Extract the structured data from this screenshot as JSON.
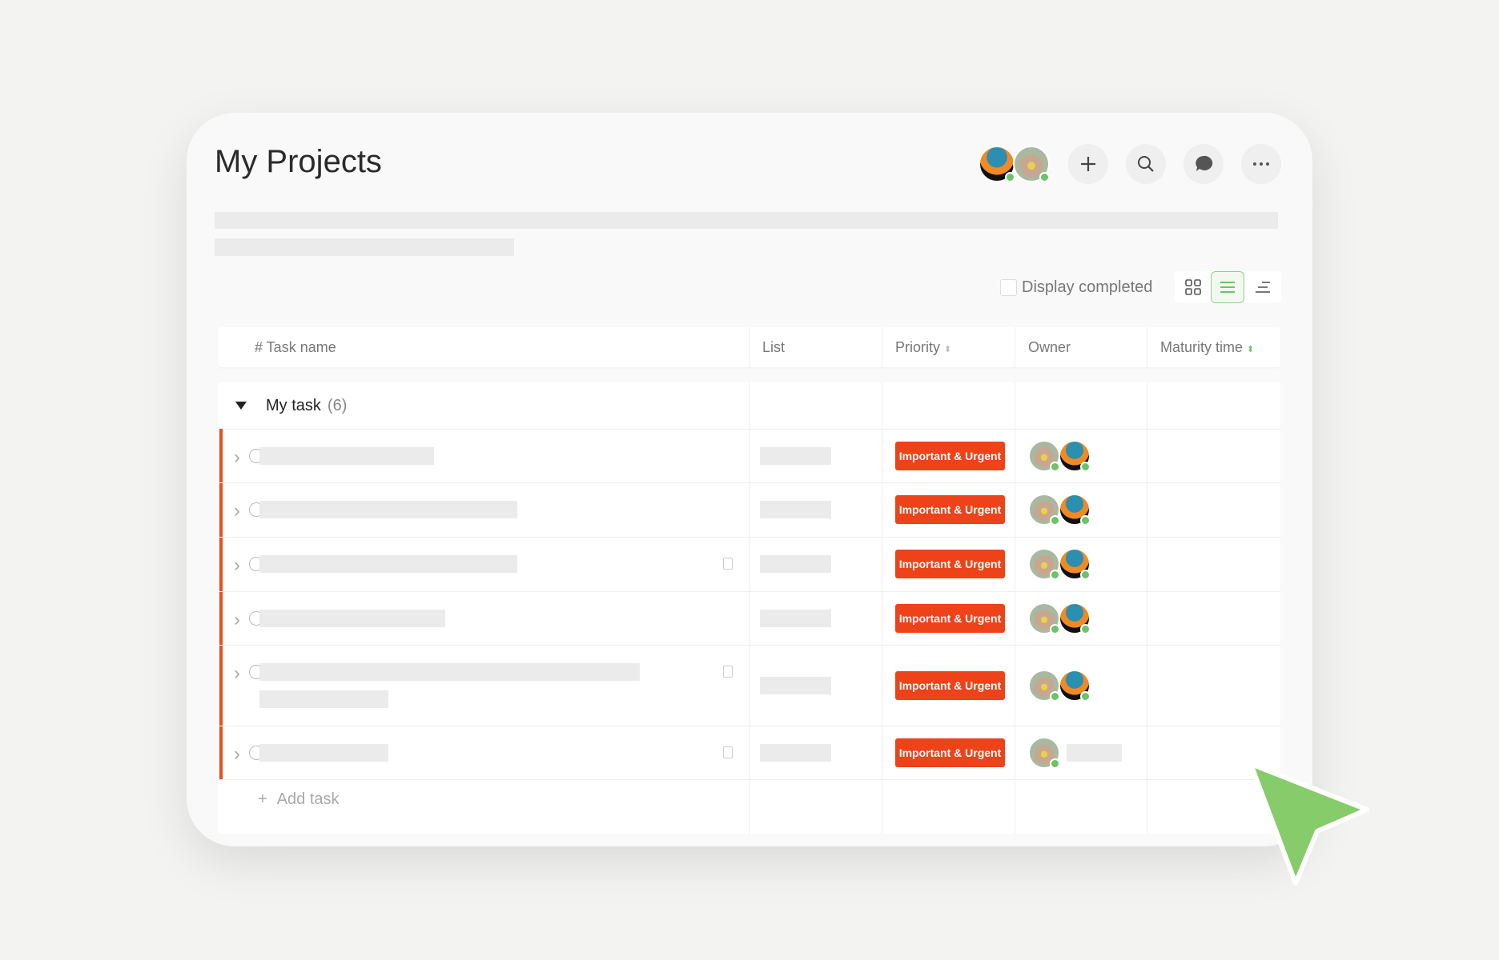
{
  "header": {
    "title": "My Projects",
    "buttons": [
      "plus-icon",
      "search-icon",
      "chat-icon",
      "more-icon"
    ]
  },
  "toolbar": {
    "display_completed": "Display completed",
    "display_completed_checked": false,
    "views": [
      "grid-view",
      "list-view",
      "gantt-view"
    ],
    "active_view": "list-view"
  },
  "table": {
    "columns": {
      "task": "# Task name",
      "list": "List",
      "priority": "Priority",
      "owner": "Owner",
      "maturity": "Maturity time"
    },
    "group": {
      "name": "My task",
      "count": "(6)",
      "expanded": true
    },
    "rows": [
      {
        "priority": "Important & Urgent",
        "owners": 2,
        "note": false
      },
      {
        "priority": "Important & Urgent",
        "owners": 2,
        "note": false
      },
      {
        "priority": "Important & Urgent",
        "owners": 2,
        "note": true
      },
      {
        "priority": "Important & Urgent",
        "owners": 2,
        "note": false
      },
      {
        "priority": "Important & Urgent",
        "owners": 2,
        "note": true
      },
      {
        "priority": "Important & Urgent",
        "owners": 1,
        "note": true
      }
    ],
    "add_task": "Add task"
  },
  "colors": {
    "accent": "#8fd18a",
    "priority_urgent": "#ee4219",
    "cursor": "#86cc6a"
  }
}
